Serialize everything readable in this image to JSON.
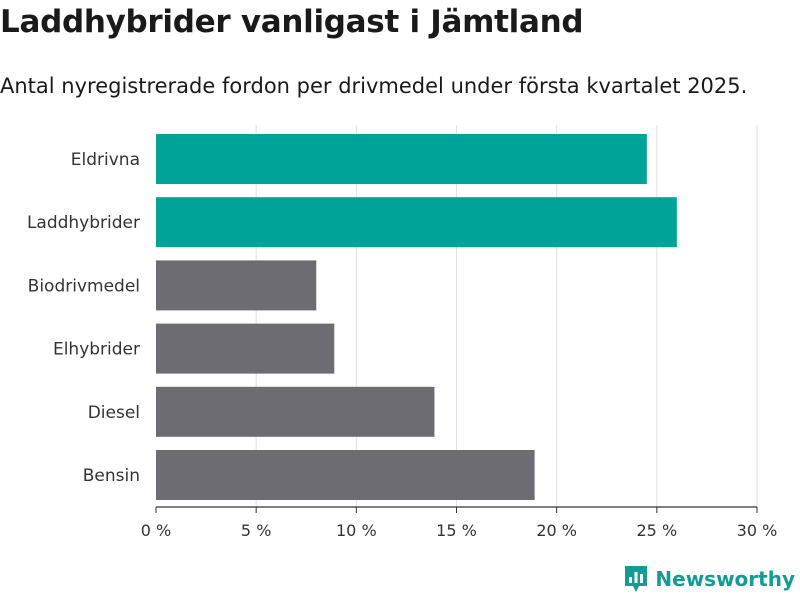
{
  "header": {
    "title": "Laddhybrider vanligast i Jämtland",
    "subtitle": "Antal nyregistrerade fordon per drivmedel under första kvartalet 2025."
  },
  "brand": {
    "name": "Newsworthy",
    "logo_icon": "bar-chart-badge-icon"
  },
  "chart_data": {
    "type": "bar",
    "orientation": "horizontal",
    "categories": [
      "Eldrivna",
      "Laddhybrider",
      "Biodrivmedel",
      "Elhybrider",
      "Diesel",
      "Bensin"
    ],
    "values": [
      24.5,
      26.0,
      8.0,
      8.9,
      13.9,
      18.9
    ],
    "highlighted": [
      "Eldrivna",
      "Laddhybrider"
    ],
    "x_ticks": [
      0,
      5,
      10,
      15,
      20,
      25,
      30
    ],
    "x_tick_labels": [
      "0 %",
      "5 %",
      "10 %",
      "15 %",
      "20 %",
      "25 %",
      "30 %"
    ],
    "xlim": [
      0,
      30
    ],
    "grid": true,
    "colors": {
      "highlight": "#00a398",
      "default": "#6d6c72",
      "grid": "#e1e1e1",
      "axis": "#333333",
      "brand": "#159b93"
    }
  }
}
